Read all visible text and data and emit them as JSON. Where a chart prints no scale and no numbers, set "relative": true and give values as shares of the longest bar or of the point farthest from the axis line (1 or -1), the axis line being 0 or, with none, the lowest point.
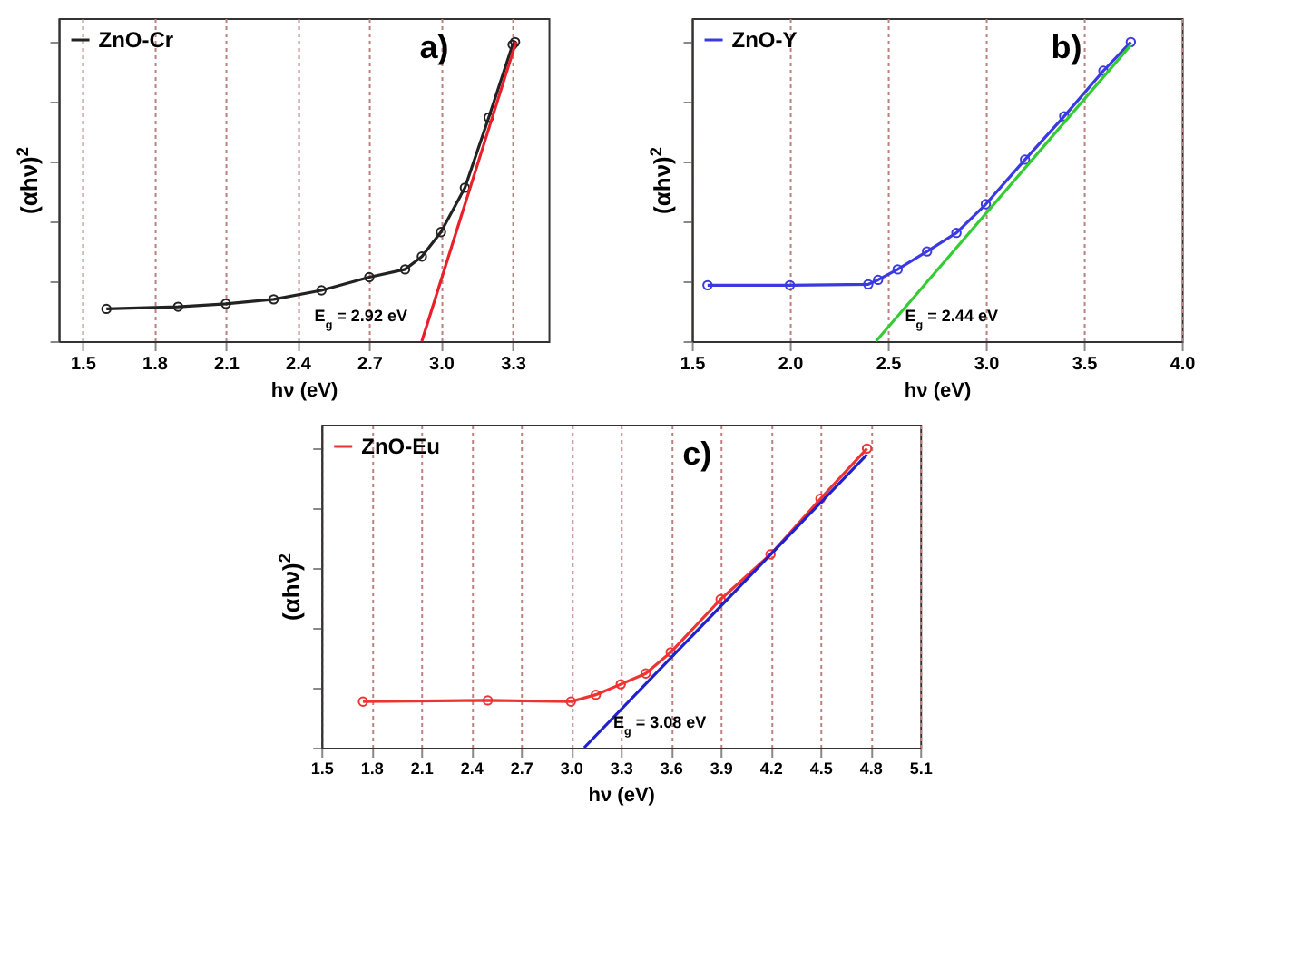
{
  "chart_data": [
    {
      "type": "line",
      "title": "a)",
      "xlabel": "hν (eV)",
      "ylabel": "(αhν)$^{2}$",
      "relative": true,
      "xlim": [
        1.4,
        3.45
      ],
      "xticks": [
        1.5,
        1.8,
        2.1,
        2.4,
        2.7,
        {
          "value": 3,
          "label": "3.0"
        },
        3.3
      ],
      "grid": "x",
      "legend": "top left",
      "tick_labels": "x",
      "marker": "circle",
      "annotations": [
        "E$_{g}$ = 2.92 eV"
      ],
      "series": [
        {
          "name": "ZnO-Cr",
          "color": "#222222",
          "x": [
            1.6,
            1.9,
            2.1,
            2.3,
            2.5,
            2.7,
            2.85,
            2.92,
            3.0,
            3.1,
            3.2,
            3.3,
            3.31
          ],
          "values": [
            0.108,
            0.115,
            0.125,
            0.14,
            0.17,
            0.214,
            0.24,
            0.283,
            0.365,
            0.513,
            0.748,
            0.991,
            1
          ]
        },
        {
          "type": "line",
          "color": "#e8202a",
          "marker": "none",
          "x": [
            2.92,
            3.314
          ],
          "values": [
            0,
            1
          ]
        }
      ]
    },
    {
      "type": "line",
      "title": "b)",
      "xlabel": "hν (eV)",
      "ylabel": "(αhν)$^{2}$",
      "relative": true,
      "xlim": [
        1.5,
        4.0
      ],
      "xticks": [
        1.5,
        {
          "value": 2,
          "label": "2.0"
        },
        2.5,
        {
          "value": 3,
          "label": "3.0"
        },
        3.5,
        {
          "value": 4,
          "label": "4.0"
        }
      ],
      "grid": "x",
      "legend": "top left",
      "tick_labels": "x",
      "marker": "circle",
      "annotations": [
        "E$_{g}$ = 2.44 eV"
      ],
      "series": [
        {
          "name": "ZnO-Y",
          "color": "#3a3ae0",
          "x": [
            1.58,
            2.0,
            2.4,
            2.45,
            2.55,
            2.7,
            2.85,
            3.0,
            3.2,
            3.4,
            3.6,
            3.74
          ],
          "values": [
            0.187,
            0.187,
            0.19,
            0.205,
            0.24,
            0.3,
            0.362,
            0.458,
            0.607,
            0.752,
            0.904,
            1
          ]
        },
        {
          "type": "line",
          "color": "#33cc33",
          "marker": "none",
          "x": [
            2.44,
            3.74
          ],
          "values": [
            0,
            0.99
          ]
        }
      ]
    },
    {
      "type": "line",
      "title": "c)",
      "xlabel": "hν (eV)",
      "ylabel": "(αhν)$^{2}$",
      "relative": true,
      "xlim": [
        1.5,
        5.1
      ],
      "xticks": [
        1.5,
        1.8,
        2.1,
        2.4,
        2.7,
        {
          "value": 3,
          "label": "3.0"
        },
        3.3,
        3.6,
        3.9,
        4.2,
        4.5,
        4.8,
        5.1
      ],
      "grid": "x",
      "legend": "top left",
      "tick_labels": "x",
      "marker": "circle",
      "annotations": [
        "E$_{g}$ = 3.08 eV"
      ],
      "series": [
        {
          "name": "ZnO-Eu",
          "color": "#ee3333",
          "x": [
            1.75,
            2.5,
            3.0,
            3.15,
            3.3,
            3.45,
            3.6,
            3.9,
            4.2,
            4.5,
            4.78
          ],
          "values": [
            0.154,
            0.158,
            0.154,
            0.177,
            0.212,
            0.248,
            0.319,
            0.496,
            0.646,
            0.832,
            1
          ]
        },
        {
          "type": "line",
          "color": "#2020cc",
          "marker": "none",
          "x": [
            3.08,
            4.78
          ],
          "values": [
            0,
            0.98
          ]
        }
      ]
    }
  ]
}
